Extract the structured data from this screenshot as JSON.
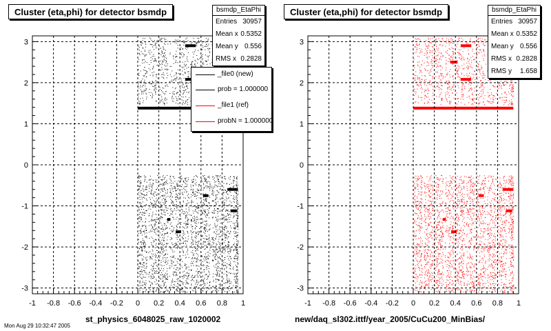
{
  "chart_data": [
    {
      "type": "scatter",
      "title": "Cluster (eta,phi) for detector bsmdp",
      "xlabel": "st_physics_6048025_raw_1020002",
      "ylabel": "",
      "xlim": [
        -1,
        1
      ],
      "ylim": [
        -3.14,
        3.14
      ],
      "xticks": [
        "-1",
        "-0.8",
        "-0.6",
        "-0.4",
        "-0.2",
        "0",
        "0.2",
        "0.4",
        "0.6",
        "0.8",
        "1"
      ],
      "yticks": [
        "-3",
        "-2",
        "-1",
        "0",
        "1",
        "2",
        "3"
      ],
      "grid": true,
      "stats": {
        "name": "bsmdp_EtaPhi",
        "rows": [
          {
            "label": "Entries",
            "value": "30957"
          },
          {
            "label": "Mean x",
            "value": "0.5352"
          },
          {
            "label": "Mean y",
            "value": "0.556"
          },
          {
            "label": "RMS x",
            "value": "0.2828"
          }
        ]
      },
      "legend": {
        "placement": "top-right",
        "entries": [
          {
            "label": "_file0 (new)",
            "color": "#000000"
          },
          {
            "label": "prob = 1.000000",
            "color": "#000000"
          },
          {
            "label": "_file1 (ref)",
            "color": "#ff0000"
          },
          {
            "label": "probN = 1.000000",
            "color": "#ff0000"
          }
        ]
      },
      "point_color": "#000000",
      "eta_region": [
        0.0,
        0.95
      ],
      "phi_gap": [
        -0.25,
        1.32
      ],
      "hot_segments": [
        {
          "eta": [
            0.45,
            0.55
          ],
          "phi": 2.9
        },
        {
          "eta": [
            0.45,
            0.55
          ],
          "phi": 2.08
        },
        {
          "eta": [
            0.0,
            0.95
          ],
          "phi": 1.38
        },
        {
          "eta": [
            0.85,
            0.95
          ],
          "phi": -0.6
        },
        {
          "eta": [
            0.62,
            0.67
          ],
          "phi": -0.75
        },
        {
          "eta": [
            0.88,
            0.94
          ],
          "phi": -1.12
        },
        {
          "eta": [
            0.28,
            0.31
          ],
          "phi": -1.33
        },
        {
          "eta": [
            0.36,
            0.41
          ],
          "phi": -1.63
        }
      ]
    },
    {
      "type": "scatter",
      "title": "Cluster (eta,phi) for detector bsmdp",
      "xlabel": "new/daq_sl302.ittf/year_2005/CuCu200_MinBias/",
      "ylabel": "",
      "xlim": [
        -1,
        1
      ],
      "ylim": [
        -3.14,
        3.14
      ],
      "xticks": [
        "-1",
        "-0.8",
        "-0.6",
        "-0.4",
        "-0.2",
        "0",
        "0.2",
        "0.4",
        "0.6",
        "0.8",
        "1"
      ],
      "yticks": [
        "-3",
        "-2",
        "-1",
        "0",
        "1",
        "2",
        "3"
      ],
      "grid": true,
      "stats": {
        "name": "bsmdp_EtaPhi",
        "rows": [
          {
            "label": "Entries",
            "value": "30957"
          },
          {
            "label": "Mean x",
            "value": "0.5352"
          },
          {
            "label": "Mean y",
            "value": "0.556"
          },
          {
            "label": "RMS x",
            "value": "0.2828"
          },
          {
            "label": "RMS y",
            "value": "1.658"
          }
        ]
      },
      "point_color": "#ff0000",
      "eta_region": [
        0.0,
        0.95
      ],
      "phi_gap": [
        -0.25,
        1.32
      ],
      "hot_segments": [
        {
          "eta": [
            0.45,
            0.55
          ],
          "phi": 2.9
        },
        {
          "eta": [
            0.35,
            0.42
          ],
          "phi": 2.5
        },
        {
          "eta": [
            0.45,
            0.55
          ],
          "phi": 2.08
        },
        {
          "eta": [
            0.0,
            0.95
          ],
          "phi": 1.38
        },
        {
          "eta": [
            0.85,
            0.95
          ],
          "phi": -0.6
        },
        {
          "eta": [
            0.62,
            0.67
          ],
          "phi": -0.75
        },
        {
          "eta": [
            0.88,
            0.94
          ],
          "phi": -1.12
        },
        {
          "eta": [
            0.28,
            0.31
          ],
          "phi": -1.33
        },
        {
          "eta": [
            0.36,
            0.41
          ],
          "phi": -1.63
        }
      ]
    }
  ],
  "footer": "Mon Aug 29 10:32:47 2005"
}
